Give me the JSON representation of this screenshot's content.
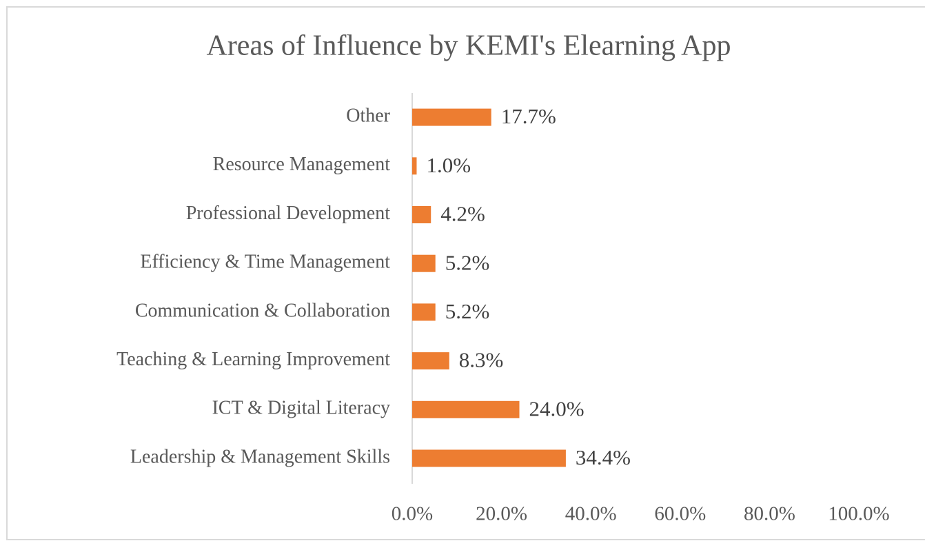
{
  "chart_data": {
    "type": "bar",
    "orientation": "horizontal",
    "title": "Areas of Influence by KEMI's Elearning App",
    "categories": [
      "Leadership & Management Skills",
      "ICT & Digital Literacy",
      "Teaching & Learning Improvement",
      "Communication & Collaboration",
      "Efficiency & Time Management",
      "Professional Development",
      "Resource Management",
      "Other"
    ],
    "values": [
      34.4,
      24.0,
      8.3,
      5.2,
      5.2,
      4.2,
      1.0,
      17.7
    ],
    "value_labels": [
      "34.4%",
      "24.0%",
      "8.3%",
      "5.2%",
      "5.2%",
      "4.2%",
      "1.0%",
      "17.7%"
    ],
    "color": "#ed7d31",
    "xlim": [
      0,
      100
    ],
    "xticks": [
      {
        "value": 0,
        "label": "0.0%"
      },
      {
        "value": 20,
        "label": "20.0%"
      },
      {
        "value": 40,
        "label": "40.0%"
      },
      {
        "value": 60,
        "label": "60.0%"
      },
      {
        "value": 80,
        "label": "80.0%"
      },
      {
        "value": 100,
        "label": "100.0%"
      }
    ],
    "grid": false
  }
}
